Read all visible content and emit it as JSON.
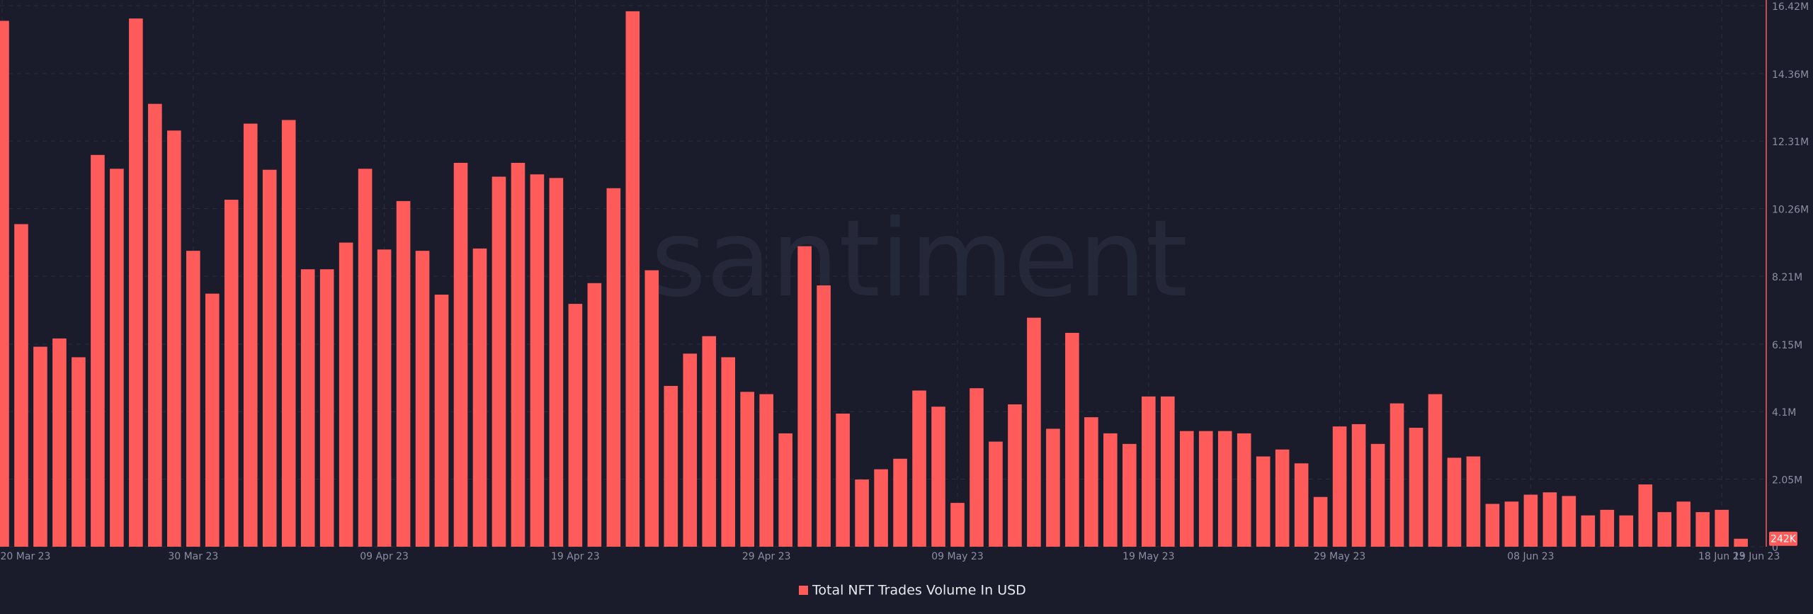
{
  "chart_data": {
    "type": "bar",
    "watermark": "santiment",
    "color": "#ff5b5b",
    "grid": true,
    "series": [
      {
        "name": "Total NFT Trades Volume In USD",
        "color": "#ff5b5b",
        "values": [
          15960000,
          9790000,
          6070000,
          6320000,
          5750000,
          11890000,
          11470000,
          16030000,
          13440000,
          12630000,
          8980000,
          7680000,
          10530000,
          12840000,
          11440000,
          12950000,
          8420000,
          8420000,
          9230000,
          11470000,
          9020000,
          10490000,
          8980000,
          7650000,
          11650000,
          9050000,
          11230000,
          11650000,
          11300000,
          11190000,
          7370000,
          8000000,
          10880000,
          16250000,
          8390000,
          4880000,
          5860000,
          6390000,
          5750000,
          4700000,
          4630000,
          3440000,
          9120000,
          7930000,
          4040000,
          2040000,
          2350000,
          2670000,
          4740000,
          4250000,
          1330000,
          4810000,
          3190000,
          4320000,
          6950000,
          3580000,
          6490000,
          3930000,
          3440000,
          3120000,
          4560000,
          4560000,
          3510000,
          3510000,
          3510000,
          3440000,
          2740000,
          2950000,
          2530000,
          1510000,
          3650000,
          3720000,
          3120000,
          4350000,
          3610000,
          4630000,
          2700000,
          2740000,
          1300000,
          1370000,
          1580000,
          1650000,
          1540000,
          950000,
          1120000,
          950000,
          1890000,
          1050000,
          1370000,
          1050000,
          1120000,
          242000
        ],
        "value_labels": [
          null,
          null,
          null,
          null,
          null,
          null,
          null,
          null,
          null,
          null,
          null,
          null,
          null,
          null,
          null,
          null,
          null,
          null,
          null,
          null,
          null,
          null,
          null,
          null,
          null,
          null,
          null,
          null,
          null,
          null,
          null,
          null,
          null,
          null,
          null,
          null,
          null,
          null,
          null,
          null,
          null,
          null,
          null,
          null,
          null,
          null,
          null,
          null,
          null,
          null,
          null,
          null,
          null,
          null,
          null,
          null,
          null,
          null,
          null,
          null,
          null,
          null,
          null,
          null,
          null,
          null,
          null,
          null,
          null,
          null,
          null,
          null,
          null,
          null,
          null,
          null,
          null,
          null,
          null,
          null,
          null,
          null,
          null,
          null,
          null,
          null,
          null,
          null,
          null,
          null,
          null,
          "242K"
        ]
      }
    ],
    "categories": [
      "20 Mar 23",
      null,
      null,
      null,
      null,
      null,
      null,
      null,
      null,
      null,
      "30 Mar 23",
      null,
      null,
      null,
      null,
      null,
      null,
      null,
      null,
      null,
      "09 Apr 23",
      null,
      null,
      null,
      null,
      null,
      null,
      null,
      null,
      null,
      "19 Apr 23",
      null,
      null,
      null,
      null,
      null,
      null,
      null,
      null,
      null,
      "29 Apr 23",
      null,
      null,
      null,
      null,
      null,
      null,
      null,
      null,
      null,
      "09 May 23",
      null,
      null,
      null,
      null,
      null,
      null,
      null,
      null,
      null,
      "19 May 23",
      null,
      null,
      null,
      null,
      null,
      null,
      null,
      null,
      null,
      "29 May 23",
      null,
      null,
      null,
      null,
      null,
      null,
      null,
      null,
      null,
      "08 Jun 23",
      null,
      null,
      null,
      null,
      null,
      null,
      null,
      null,
      null,
      "18 Jun 23",
      "19 Jun 23"
    ],
    "ylim": [
      0,
      16420000
    ],
    "yticks": [
      0,
      {
        "value": 2050000,
        "label": "2.05M"
      },
      {
        "value": 4100000,
        "label": "4.1M"
      },
      {
        "value": 6150000,
        "label": "6.15M"
      },
      {
        "value": 8210000,
        "label": "8.21M"
      },
      {
        "value": 10260000,
        "label": "10.26M"
      },
      {
        "value": 12310000,
        "label": "12.31M"
      },
      {
        "value": 14360000,
        "label": "14.36M"
      },
      {
        "value": 16420000,
        "label": "16.42M"
      }
    ]
  }
}
